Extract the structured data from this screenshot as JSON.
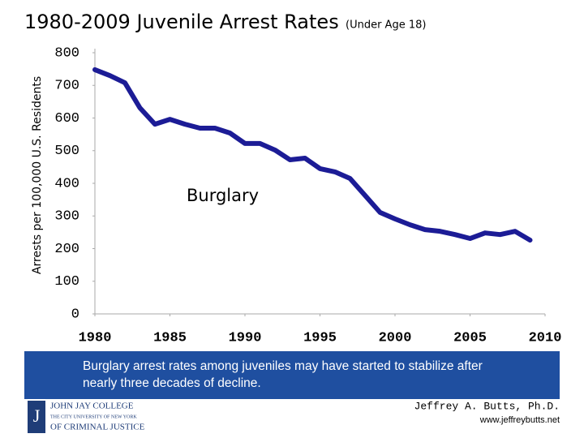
{
  "chart_data": {
    "type": "line",
    "title": "1980-2009 Juvenile Arrest Rates",
    "subtitle": "(Under Age 18)",
    "ylabel": "Arrests per 100,000 U.S. Residents",
    "x": [
      1980,
      1981,
      1982,
      1983,
      1984,
      1985,
      1986,
      1987,
      1988,
      1989,
      1990,
      1991,
      1992,
      1993,
      1994,
      1995,
      1996,
      1997,
      1998,
      1999,
      2000,
      2001,
      2002,
      2003,
      2004,
      2005,
      2006,
      2007,
      2008,
      2009
    ],
    "series": [
      {
        "name": "Burglary",
        "color": "#1c1c96",
        "values": [
          748,
          730,
          708,
          631,
          581,
          596,
          581,
          569,
          569,
          554,
          522,
          522,
          502,
          472,
          477,
          445,
          435,
          415,
          363,
          311,
          291,
          273,
          258,
          253,
          243,
          231,
          248,
          243,
          253,
          226
        ]
      }
    ],
    "xlim": [
      1980,
      2010
    ],
    "xticks": [
      1980,
      1985,
      1990,
      1995,
      2000,
      2005,
      2010
    ],
    "ylim": [
      0,
      800
    ],
    "yticks": [
      0,
      100,
      200,
      300,
      400,
      500,
      600,
      700,
      800
    ],
    "grid": false
  },
  "caption": "Burglary arrest rates among juveniles may have started to stabilize after nearly three decades of decline.",
  "logo": {
    "line1": "JOHN JAY COLLEGE",
    "line2": "THE CITY UNIVERSITY OF NEW YORK",
    "line3": "OF CRIMINAL JUSTICE"
  },
  "footer": {
    "author": "Jeffrey A. Butts, Ph.D.",
    "website": "www.jeffreybutts.net"
  }
}
